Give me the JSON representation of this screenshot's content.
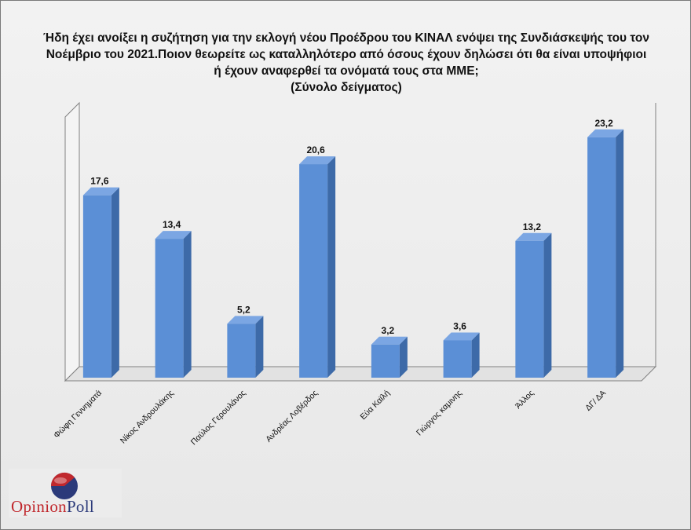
{
  "title_lines": [
    "Ήδη έχει ανοίξει η συζήτηση για την εκλογή νέου Προέδρου του ΚΙΝΑΛ ενόψει της Συνδιάσκεψής του τον",
    "Νοέμβριο του 2021.Ποιον θεωρείτε ως καταλληλότερο από όσους  έχουν δηλώσει ότι θα είναι υποψήφιοι",
    "ή έχουν αναφερθεί τα ονόματά τους  στα ΜΜΕ;",
    "(Σύνολο δείγματος)"
  ],
  "logo": {
    "word1": "Opinion",
    "word2": "Poll"
  },
  "colors": {
    "bar_front": "#5b8fd6",
    "bar_side": "#3d6aa8",
    "bar_top": "#7ba6e3"
  },
  "chart_data": {
    "type": "bar",
    "categories": [
      "Φώφη Γεννηματά",
      "Νίκος Ανδρουλάκης",
      "Παύλος Γερουλάνος",
      "Ανδρέας Λοβέρδος",
      "Εύα Καϊλή",
      "Γιώργος καμινης",
      "Άλλος",
      "ΔΓ/ ΔΑ"
    ],
    "values": [
      17.6,
      13.4,
      5.2,
      20.6,
      3.2,
      3.6,
      13.2,
      23.2
    ],
    "labels": [
      "17,6",
      "13,4",
      "5,2",
      "20,6",
      "3,2",
      "3,6",
      "13,2",
      "23,2"
    ],
    "ylim": [
      0,
      25
    ],
    "grid": false,
    "legend": "none"
  }
}
